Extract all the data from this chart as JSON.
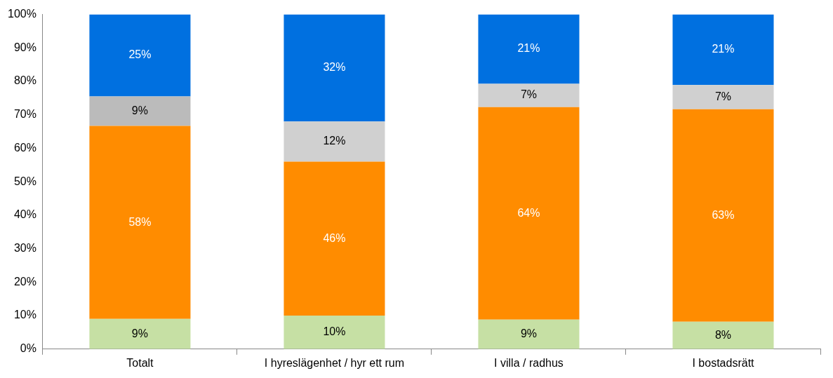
{
  "chart_data": {
    "type": "bar",
    "stacked": true,
    "categories": [
      "Totalt",
      "I hyreslägenhet / hyr ett rum",
      "I villa / radhus",
      "I bostadsrätt"
    ],
    "series": [
      {
        "color": "#c6e0a4",
        "values": [
          9,
          10,
          8.8,
          8.2
        ],
        "value_labels": [
          "9%",
          "10%",
          "9%",
          "8%"
        ]
      },
      {
        "color": "#ff8c00",
        "values": [
          57.7,
          46,
          63.5,
          63.5
        ],
        "value_labels": [
          "58%",
          "46%",
          "64%",
          "63%"
        ]
      },
      {
        "colors": [
          "#bbbbbb",
          "#d0d0d0",
          "#d0d0d0",
          "#d0d0d0"
        ],
        "values": [
          8.8,
          12,
          7,
          7.2
        ],
        "value_labels": [
          "9%",
          "12%",
          "7%",
          "7%"
        ]
      },
      {
        "color": "#0070e0",
        "values": [
          24.5,
          32,
          20.7,
          21.1
        ],
        "value_labels": [
          "25%",
          "32%",
          "21%",
          "21%"
        ]
      }
    ],
    "ylim": [
      0,
      100
    ],
    "yticks": [
      {
        "value": 0,
        "label": "0%"
      },
      {
        "value": 10,
        "label": "10%"
      },
      {
        "value": 20,
        "label": "20%"
      },
      {
        "value": 30,
        "label": "30%"
      },
      {
        "value": 40,
        "label": "40%"
      },
      {
        "value": 50,
        "label": "50%"
      },
      {
        "value": 60,
        "label": "60%"
      },
      {
        "value": 70,
        "label": "70%"
      },
      {
        "value": 80,
        "label": "80%"
      },
      {
        "value": 90,
        "label": "90%"
      },
      {
        "value": 100,
        "label": "100%"
      }
    ],
    "grid": false,
    "legend": false
  }
}
